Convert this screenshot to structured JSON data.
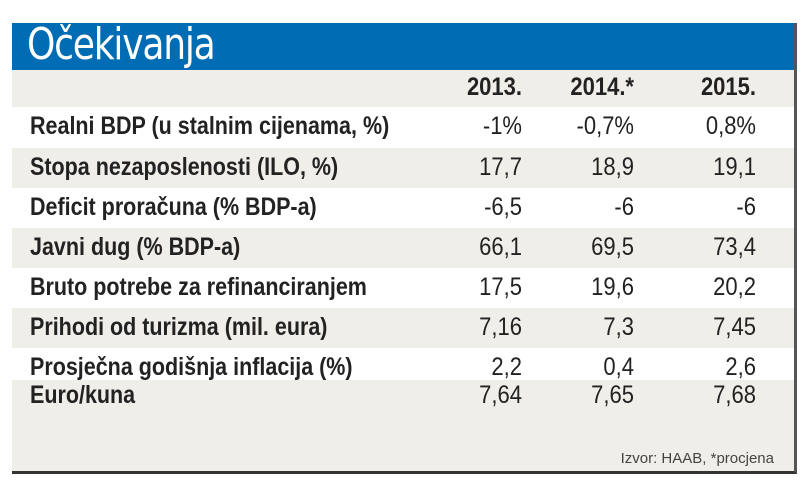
{
  "title": "Očekivanja",
  "chart_data": {
    "type": "table",
    "columns": [
      "2013.",
      "2014.*",
      "2015."
    ],
    "rows": [
      {
        "label": "Realni BDP (u stalnim cijenama, %)",
        "values": [
          "-1%",
          "-0,7%",
          "0,8%"
        ]
      },
      {
        "label": "Stopa nezaposlenosti (ILO, %)",
        "values": [
          "17,7",
          "18,9",
          "19,1"
        ]
      },
      {
        "label": "Deficit proračuna (% BDP-a)",
        "values": [
          "-6,5",
          "-6",
          "-6"
        ]
      },
      {
        "label": "Javni dug (% BDP-a)",
        "values": [
          "66,1",
          "69,5",
          "73,4"
        ]
      },
      {
        "label": "Bruto potrebe za refinanciranjem",
        "values": [
          "17,5",
          "19,6",
          "20,2"
        ]
      },
      {
        "label": "Prihodi od turizma (mil. eura)",
        "values": [
          "7,16",
          "7,3",
          "7,45"
        ]
      },
      {
        "label": "Prosječna godišnja inflacija (%)",
        "values": [
          "2,2",
          "0,4",
          "2,6"
        ]
      },
      {
        "label": "Euro/kuna",
        "values": [
          "7,64",
          "7,65",
          "7,68"
        ]
      }
    ],
    "source": "Izvor: HAAB, *procjena"
  },
  "colors": {
    "header": "#006cb4",
    "band": "#f0eee8",
    "row_alt": "#ffffff"
  }
}
